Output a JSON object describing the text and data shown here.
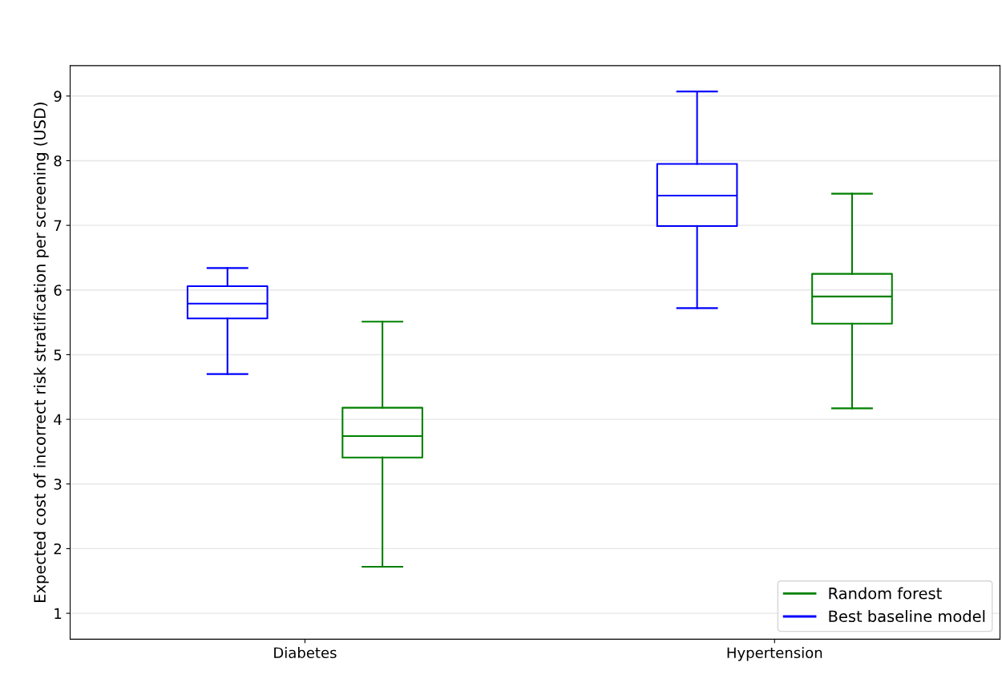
{
  "chart_data": {
    "type": "box",
    "ylabel": "Expected cost of incorrect risk stratification per screening (USD)",
    "categories": [
      "Diabetes",
      "Hypertension"
    ],
    "series": [
      {
        "name": "Random forest",
        "color": "#008000",
        "boxes": [
          {
            "low": 1.72,
            "q1": 3.41,
            "median": 3.74,
            "q3": 4.18,
            "high": 5.51
          },
          {
            "low": 4.17,
            "q1": 5.48,
            "median": 5.9,
            "q3": 6.25,
            "high": 7.49
          }
        ]
      },
      {
        "name": "Best baseline model",
        "color": "#0000ff",
        "boxes": [
          {
            "low": 4.7,
            "q1": 5.56,
            "median": 5.79,
            "q3": 6.06,
            "high": 6.34
          },
          {
            "low": 5.72,
            "q1": 6.99,
            "median": 7.46,
            "q3": 7.95,
            "high": 9.07
          }
        ]
      }
    ],
    "ylim": [
      0.6,
      9.47
    ],
    "yticks": [
      1,
      2,
      3,
      4,
      5,
      6,
      7,
      8,
      9
    ],
    "grid": "y",
    "legend": "bottom right"
  }
}
